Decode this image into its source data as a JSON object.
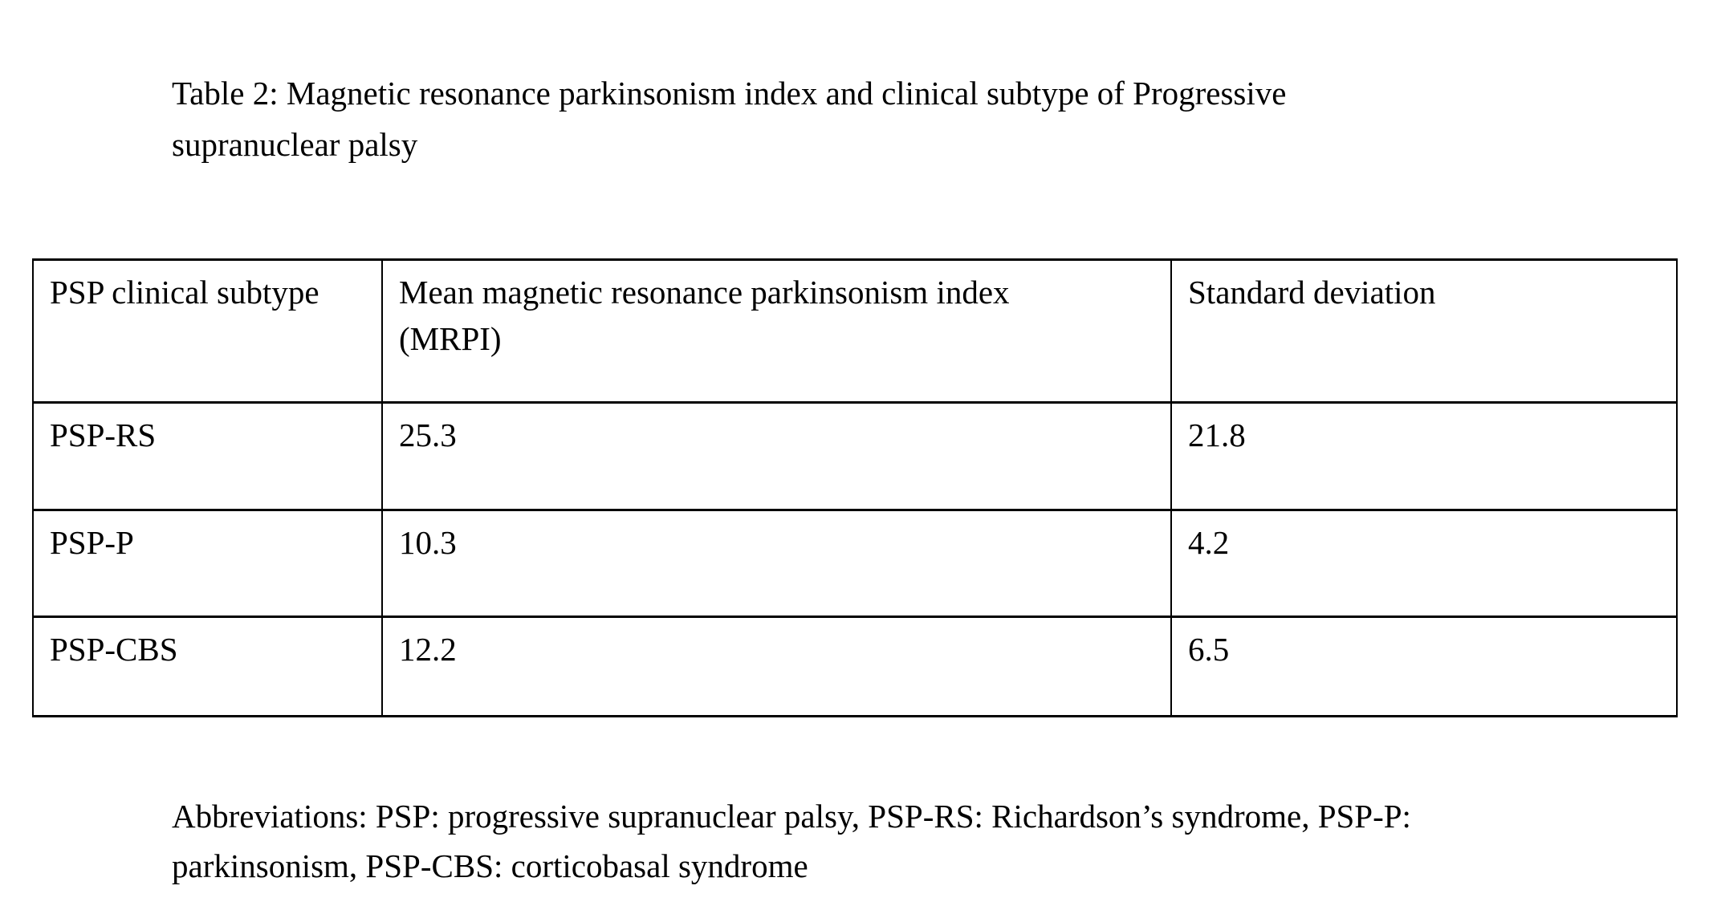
{
  "document": {
    "caption": "Table 2: Magnetic resonance parkinsonism index and clinical subtype of Progressive\nsupranuclear palsy",
    "abbreviations": "Abbreviations: PSP: progressive supranuclear palsy, PSP-RS: Richardson’s syndrome, PSP-P:\nparkinsonism, PSP-CBS: corticobasal syndrome"
  },
  "table": {
    "headers": {
      "subtype": "PSP clinical subtype",
      "mrpi": "Mean magnetic resonance parkinsonism index\n(MRPI)",
      "sd": "Standard deviation"
    },
    "rows": [
      {
        "subtype": "PSP-RS",
        "mrpi": "25.3",
        "sd": "21.8"
      },
      {
        "subtype": "PSP-P",
        "mrpi": "10.3",
        "sd": "4.2"
      },
      {
        "subtype": "PSP-CBS",
        "mrpi": "12.2",
        "sd": "6.5"
      }
    ]
  },
  "colors": {
    "text": "#000000",
    "background": "#ffffff",
    "border": "#000000"
  }
}
